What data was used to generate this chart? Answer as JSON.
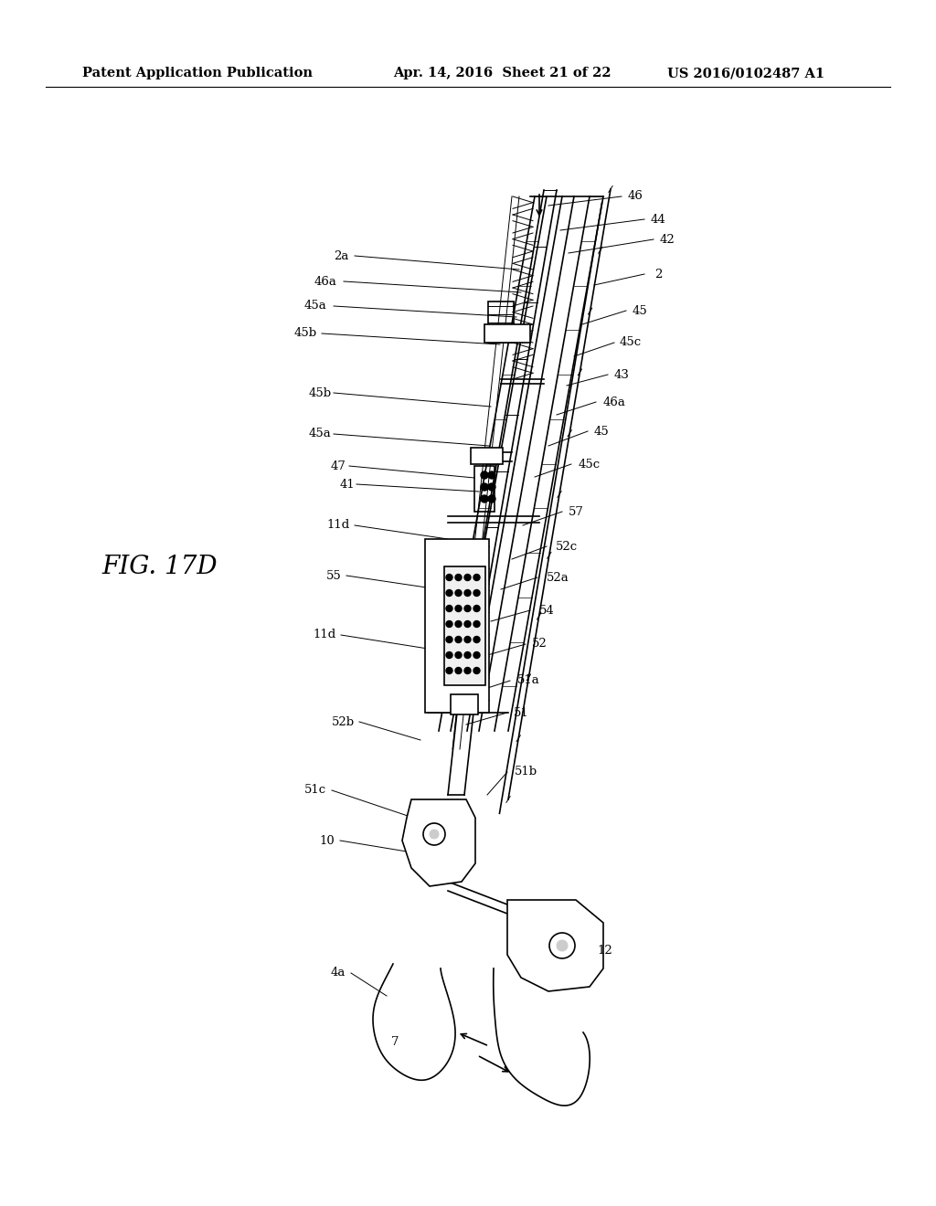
{
  "bg_color": "#ffffff",
  "header_text": "Patent Application Publication",
  "header_date": "Apr. 14, 2016  Sheet 21 of 22",
  "header_patent": "US 2016/0102487 A1",
  "fig_label": "FIG. 17D",
  "title_fontsize": 11,
  "header_fontsize": 10.5
}
